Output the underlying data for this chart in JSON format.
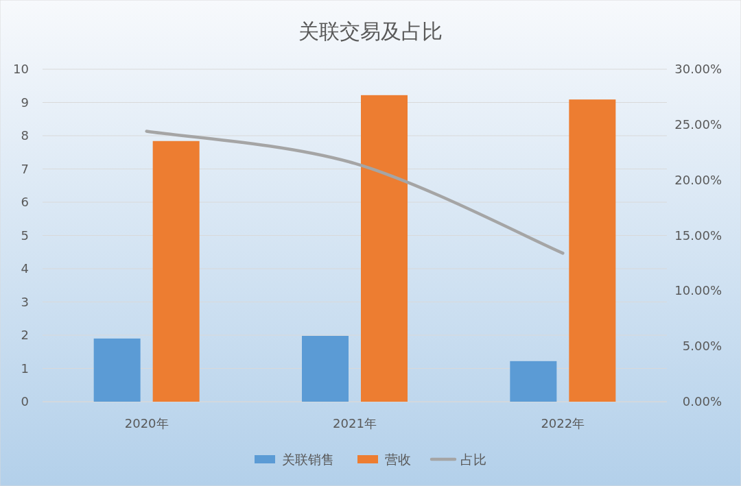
{
  "chart_data": {
    "type": "bar",
    "title": "关联交易及占比",
    "categories": [
      "2020年",
      "2021年",
      "2022年"
    ],
    "series": [
      {
        "name": "关联销售",
        "color": "#5b9bd5",
        "values": [
          1.9,
          1.98,
          1.22
        ]
      },
      {
        "name": "营收",
        "color": "#ed7d31",
        "values": [
          7.84,
          9.22,
          9.09
        ]
      },
      {
        "name": "占比",
        "type": "line",
        "axis": "y2",
        "color": "#a5a5a5",
        "values": [
          24.4,
          21.5,
          13.4
        ]
      }
    ],
    "ylim": [
      0,
      10
    ],
    "yticks": [
      0,
      1,
      2,
      3,
      4,
      5,
      6,
      7,
      8,
      9,
      10
    ],
    "y2lim": [
      0,
      30
    ],
    "y2ticks": [
      {
        "value": 0,
        "label": "0.00%"
      },
      {
        "value": 5,
        "label": "5.00%"
      },
      {
        "value": 10,
        "label": "10.00%"
      },
      {
        "value": 15,
        "label": "15.00%"
      },
      {
        "value": 20,
        "label": "20.00%"
      },
      {
        "value": 25,
        "label": "25.00%"
      },
      {
        "value": 30,
        "label": "30.00%"
      }
    ],
    "grid": "y",
    "legend": "bottom"
  }
}
